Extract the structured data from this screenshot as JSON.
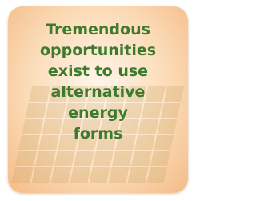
{
  "text": {
    "lines": [
      "Tremendous",
      "opportunities",
      "exist to use",
      "alternative",
      "energy",
      "forms"
    ]
  }
}
